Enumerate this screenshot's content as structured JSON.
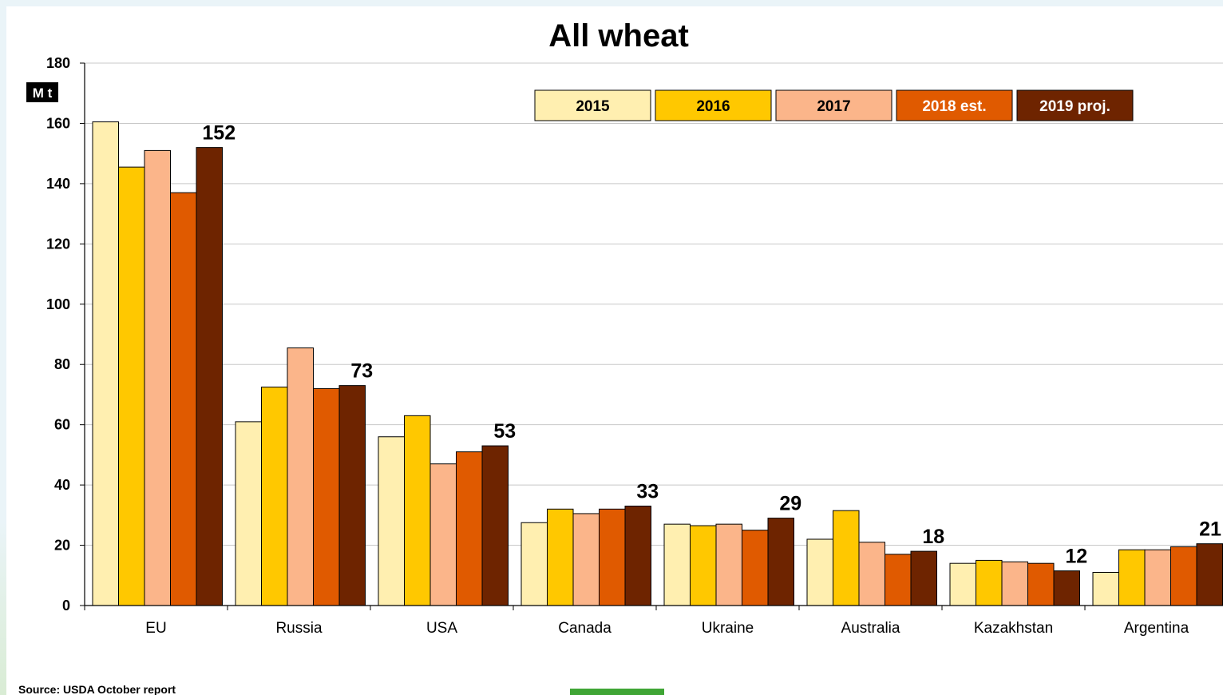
{
  "chart_data": {
    "type": "bar",
    "title": "All wheat",
    "unit": "M t",
    "xlabel": "",
    "ylabel": "",
    "ylim": [
      0,
      180
    ],
    "yticks": [
      0,
      20,
      40,
      60,
      80,
      100,
      120,
      140,
      160,
      180
    ],
    "grid": true,
    "legend_position": "top-right",
    "categories": [
      "EU",
      "Russia",
      "USA",
      "Canada",
      "Ukraine",
      "Australia",
      "Kazakhstan",
      "Argentina"
    ],
    "series": [
      {
        "name": "2015",
        "color": "#ffefb0",
        "text_color": "#000000",
        "values": [
          160.5,
          61,
          56,
          27.5,
          27,
          22,
          14,
          11
        ]
      },
      {
        "name": "2016",
        "color": "#ffc800",
        "text_color": "#000000",
        "values": [
          145.5,
          72.5,
          63,
          32,
          26.5,
          31.5,
          15,
          18.5
        ]
      },
      {
        "name": "2017",
        "color": "#fbb58a",
        "text_color": "#000000",
        "values": [
          151,
          85.5,
          47,
          30.5,
          27,
          21,
          14.5,
          18.5
        ]
      },
      {
        "name": "2018 est.",
        "color": "#e05a00",
        "text_color": "#ffffff",
        "values": [
          137,
          72,
          51,
          32,
          25,
          17,
          14,
          19.5
        ]
      },
      {
        "name": "2019 proj.",
        "color": "#6e2400",
        "text_color": "#ffffff",
        "values": [
          152,
          73,
          53,
          33,
          29,
          18,
          11.5,
          20.5
        ]
      }
    ],
    "data_labels": [
      "152",
      "73",
      "53",
      "33",
      "29",
      "18",
      "12",
      "21"
    ],
    "source": "Source: USDA October report"
  }
}
